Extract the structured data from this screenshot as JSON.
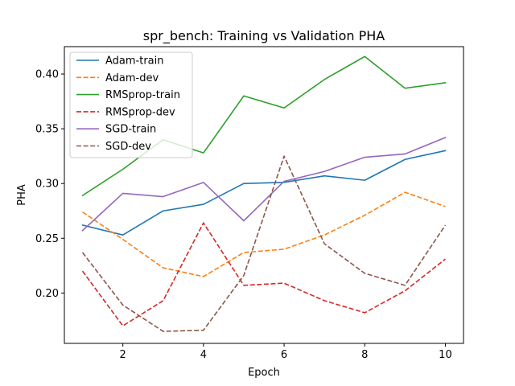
{
  "chart_data": {
    "type": "line",
    "title": "spr_bench: Training vs Validation PHA",
    "xlabel": "Epoch",
    "ylabel": "PHA",
    "x": [
      1,
      2,
      3,
      4,
      5,
      6,
      7,
      8,
      9,
      10
    ],
    "xlim": [
      0.55,
      10.45
    ],
    "ylim": [
      0.154,
      0.425
    ],
    "xticks": [
      2,
      4,
      6,
      8,
      10
    ],
    "yticks": [
      0.2,
      0.25,
      0.3,
      0.35,
      0.4
    ],
    "ytick_labels": [
      "0.20",
      "0.25",
      "0.30",
      "0.35",
      "0.40"
    ],
    "grid": false,
    "legend_position": "top-left",
    "series": [
      {
        "name": "Adam-train",
        "color": "#1f77b4",
        "dashed": false,
        "values": [
          0.262,
          0.253,
          0.275,
          0.281,
          0.3,
          0.301,
          0.307,
          0.303,
          0.322,
          0.33
        ]
      },
      {
        "name": "Adam-dev",
        "color": "#ff7f0e",
        "dashed": true,
        "values": [
          0.274,
          0.249,
          0.223,
          0.215,
          0.237,
          0.24,
          0.253,
          0.271,
          0.292,
          0.279
        ]
      },
      {
        "name": "RMSprop-train",
        "color": "#2ca02c",
        "dashed": false,
        "values": [
          0.289,
          0.313,
          0.34,
          0.328,
          0.38,
          0.369,
          0.395,
          0.416,
          0.387,
          0.392
        ]
      },
      {
        "name": "RMSprop-dev",
        "color": "#d62728",
        "dashed": true,
        "values": [
          0.22,
          0.17,
          0.193,
          0.264,
          0.207,
          0.209,
          0.193,
          0.182,
          0.202,
          0.231
        ]
      },
      {
        "name": "SGD-train",
        "color": "#9467bd",
        "dashed": false,
        "values": [
          0.257,
          0.291,
          0.288,
          0.301,
          0.266,
          0.302,
          0.311,
          0.324,
          0.327,
          0.342
        ]
      },
      {
        "name": "SGD-dev",
        "color": "#8c564b",
        "dashed": true,
        "values": [
          0.237,
          0.189,
          0.165,
          0.166,
          0.216,
          0.325,
          0.245,
          0.218,
          0.207,
          0.262
        ]
      }
    ]
  }
}
